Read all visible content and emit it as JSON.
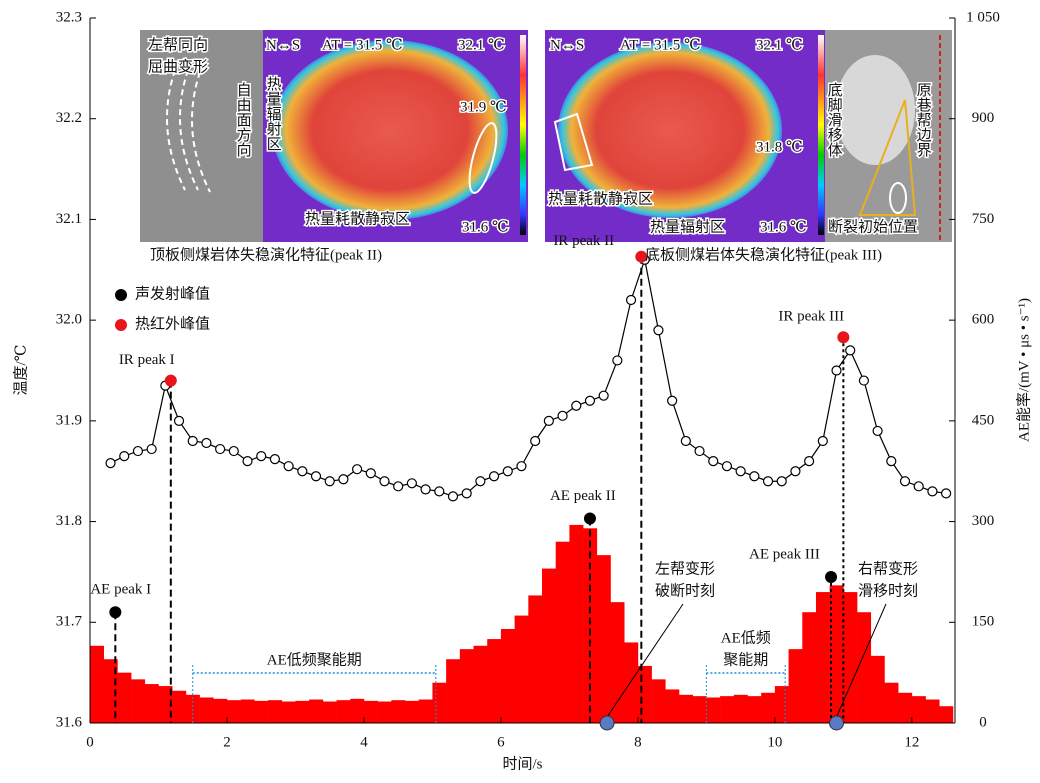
{
  "chart_data": {
    "type": "combo",
    "x_label": "时间/s",
    "y_label": "温度/℃",
    "y2_label": "AE能率/(mV • μs • s⁻¹)",
    "xlim": [
      0,
      12.63
    ],
    "xticks": [
      0,
      2,
      4,
      6,
      8,
      10,
      12
    ],
    "ylim": [
      31.6,
      32.3
    ],
    "yticks": [
      {
        "value": 31.6,
        "label": "31.6"
      },
      {
        "value": 31.7,
        "label": "31.7"
      },
      {
        "value": 31.8,
        "label": "31.8"
      },
      {
        "value": 31.9,
        "label": "31.9"
      },
      {
        "value": 32.0,
        "label": "32.0"
      },
      {
        "value": 32.1,
        "label": "32.1"
      },
      {
        "value": 32.2,
        "label": "32.2"
      },
      {
        "value": 32.3,
        "label": "32.3"
      }
    ],
    "y2lim": [
      0,
      1050
    ],
    "y2ticks": [
      0,
      150,
      300,
      450,
      600,
      750,
      900,
      {
        "value": 1050,
        "label": "1 050"
      }
    ],
    "series": [
      {
        "type": "line",
        "color": "#000000",
        "x": [
          0.3,
          0.5,
          0.7,
          0.9,
          1.1,
          1.3,
          1.5,
          1.7,
          1.9,
          2.1,
          2.3,
          2.5,
          2.7,
          2.9,
          3.1,
          3.3,
          3.5,
          3.7,
          3.9,
          4.1,
          4.3,
          4.5,
          4.7,
          4.9,
          5.1,
          5.3,
          5.5,
          5.7,
          5.9,
          6.1,
          6.3,
          6.5,
          6.7,
          6.9,
          7.1,
          7.3,
          7.5,
          7.7,
          7.9,
          8.1,
          8.3,
          8.5,
          8.7,
          8.9,
          9.1,
          9.3,
          9.5,
          9.7,
          9.9,
          10.1,
          10.3,
          10.5,
          10.7,
          10.9,
          11.1,
          11.3,
          11.5,
          11.7,
          11.9,
          12.1,
          12.3,
          12.5
        ],
        "values": [
          31.858,
          31.865,
          31.87,
          31.872,
          31.935,
          31.9,
          31.88,
          31.878,
          31.872,
          31.87,
          31.86,
          31.865,
          31.862,
          31.855,
          31.85,
          31.845,
          31.84,
          31.842,
          31.852,
          31.848,
          31.84,
          31.835,
          31.838,
          31.832,
          31.83,
          31.825,
          31.828,
          31.84,
          31.845,
          31.85,
          31.855,
          31.88,
          31.9,
          31.905,
          31.915,
          31.92,
          31.925,
          31.96,
          32.02,
          32.06,
          31.99,
          31.92,
          31.88,
          31.87,
          31.86,
          31.855,
          31.85,
          31.845,
          31.84,
          31.84,
          31.85,
          31.86,
          31.88,
          31.95,
          31.97,
          31.94,
          31.89,
          31.86,
          31.84,
          31.835,
          31.83,
          31.828
        ]
      },
      {
        "type": "bar",
        "axis": "y2",
        "color": "#ff0000",
        "x": [
          0.1,
          0.3,
          0.5,
          0.7,
          0.9,
          1.1,
          1.3,
          1.5,
          1.7,
          1.9,
          2.1,
          2.3,
          2.5,
          2.7,
          2.9,
          3.1,
          3.3,
          3.5,
          3.7,
          3.9,
          4.1,
          4.3,
          4.5,
          4.7,
          4.9,
          5.1,
          5.3,
          5.5,
          5.7,
          5.9,
          6.1,
          6.3,
          6.5,
          6.7,
          6.9,
          7.1,
          7.3,
          7.5,
          7.7,
          7.9,
          8.1,
          8.3,
          8.5,
          8.7,
          8.9,
          9.1,
          9.3,
          9.5,
          9.7,
          9.9,
          10.1,
          10.3,
          10.5,
          10.7,
          10.9,
          11.1,
          11.3,
          11.5,
          11.7,
          11.9,
          12.1,
          12.3,
          12.5
        ],
        "values": [
          115,
          95,
          75,
          65,
          58,
          55,
          48,
          42,
          38,
          36,
          34,
          35,
          33,
          34,
          32,
          33,
          35,
          32,
          34,
          36,
          33,
          32,
          34,
          33,
          35,
          60,
          95,
          110,
          115,
          125,
          140,
          160,
          190,
          230,
          270,
          295,
          290,
          250,
          180,
          120,
          85,
          65,
          50,
          42,
          40,
          38,
          40,
          42,
          40,
          45,
          55,
          110,
          165,
          195,
          205,
          195,
          165,
          100,
          60,
          45,
          40,
          35,
          25
        ]
      }
    ],
    "legend": [
      {
        "name": "声发射峰值",
        "color": "#000000"
      },
      {
        "name": "热红外峰值",
        "color": "#e8141c"
      }
    ],
    "peaks": [
      {
        "label": "AE peak I",
        "x": 0.37,
        "y": 31.71,
        "color": "#000000"
      },
      {
        "label": "IR peak I",
        "x": 1.18,
        "y": 31.94,
        "color": "#e8141c"
      },
      {
        "label": "AE peak II",
        "x": 7.3,
        "y": 31.803,
        "color": "#000000"
      },
      {
        "label": "IR peak II",
        "x": 8.05,
        "y": 32.063,
        "color": "#e8141c"
      },
      {
        "label": "AE peak III",
        "x": 10.82,
        "y": 31.745,
        "color": "#000000"
      },
      {
        "label": "IR peak III",
        "x": 11.0,
        "y": 31.983,
        "color": "#e8141c"
      }
    ],
    "events": [
      {
        "label": [
          "左帮变形",
          "破断时刻"
        ],
        "x": 7.55
      },
      {
        "label": [
          "右帮变形",
          "滑移时刻"
        ],
        "x": 10.9
      }
    ],
    "periods": [
      {
        "label": [
          "AE低频聚能期"
        ],
        "x": [
          1.5,
          5.05
        ]
      },
      {
        "label": [
          "AE低频",
          "聚能期"
        ],
        "x": [
          9.0,
          10.15
        ]
      }
    ],
    "insets": [
      {
        "caption": "顶板侧煤岩体失稳演化特征(peak II)",
        "labels": [
          "左帮同向",
          "屈曲变形",
          "自由面方向",
          "热量辐射区",
          "N↔S",
          "AT = 31.5 ℃",
          "32.1 ℃",
          "31.9 ℃",
          "31.6 ℃",
          "热量耗散静寂区"
        ]
      },
      {
        "caption": "底板侧煤岩体失稳演化特征(peak III)",
        "labels": [
          "N↔S",
          "AT = 31.5 ℃",
          "32.1 ℃",
          "31.8 ℃",
          "31.6 ℃",
          "热量耗散静寂区",
          "热量辐射区",
          "底脚滑移体",
          "原巷帮边界",
          "断裂初始位置"
        ]
      }
    ]
  }
}
